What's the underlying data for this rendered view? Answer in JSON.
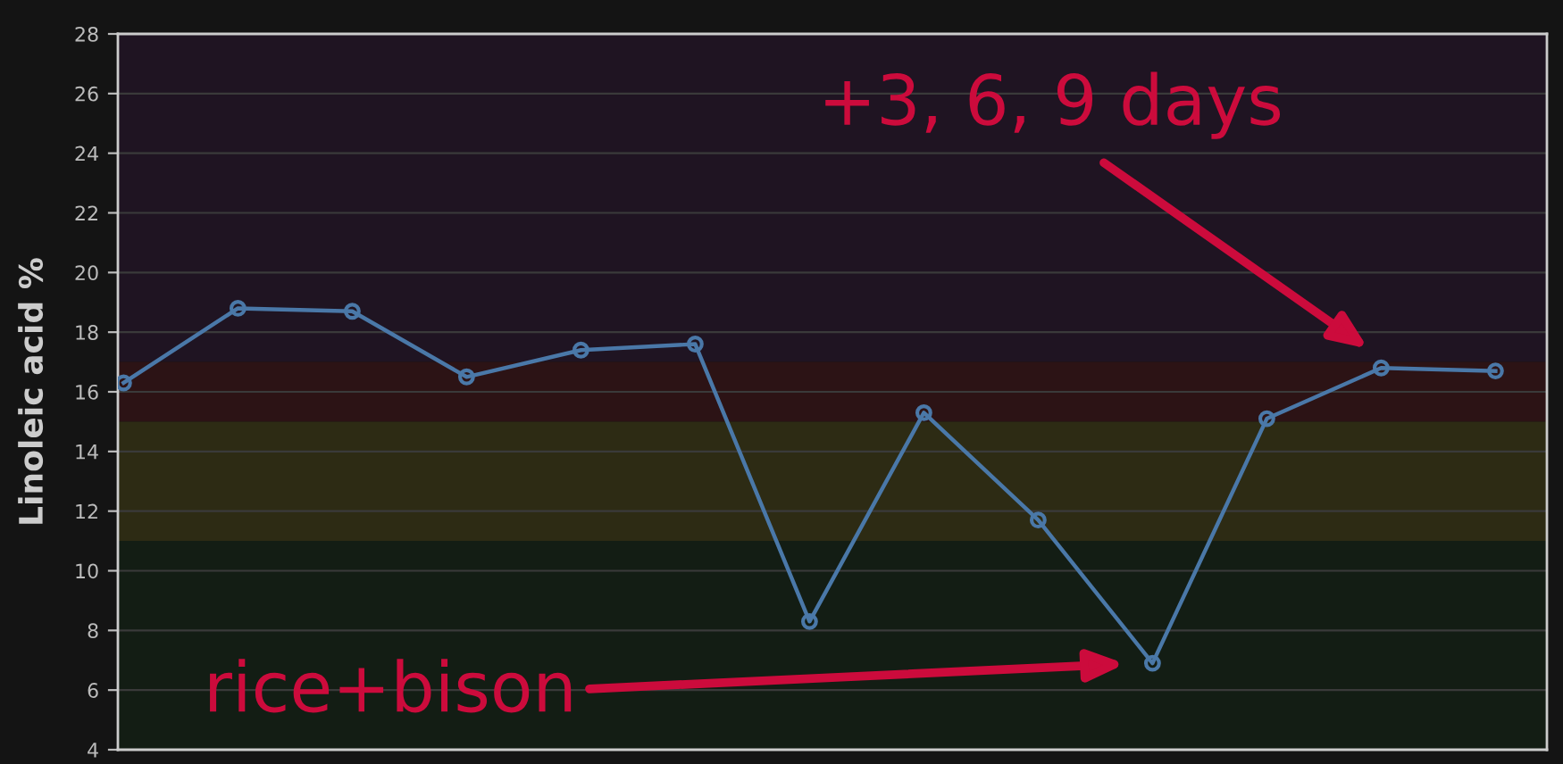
{
  "chart_data": {
    "type": "line",
    "ylabel": "Linoleic acid %",
    "categories": [
      null,
      null,
      null,
      null,
      null,
      null,
      null,
      null,
      null,
      null,
      null,
      null,
      null
    ],
    "series": [
      {
        "color": "#4a78a8",
        "values": [
          16.3,
          18.8,
          18.7,
          16.5,
          17.4,
          17.6,
          8.3,
          15.3,
          11.7,
          6.9,
          15.1,
          16.8,
          16.7
        ]
      }
    ],
    "ylim": [
      4,
      28
    ],
    "yticks": [
      4,
      6,
      8,
      10,
      12,
      14,
      16,
      18,
      20,
      22,
      24,
      26,
      28
    ],
    "tick_labels": "y",
    "grid": "y",
    "marker": "circle",
    "line_style": "solid",
    "bands": [
      {
        "axis": "y",
        "from": 17,
        "to": 28,
        "color": "#1f1422"
      },
      {
        "axis": "y",
        "from": 15,
        "to": 17,
        "color": "#2c1315"
      },
      {
        "axis": "y",
        "from": 11,
        "to": 15,
        "color": "#2d2b14"
      },
      {
        "axis": "y",
        "from": 4,
        "to": 11,
        "color": "#131d14"
      }
    ],
    "annotations": [
      "+3, 6, 9 days",
      "rice+bison"
    ]
  }
}
